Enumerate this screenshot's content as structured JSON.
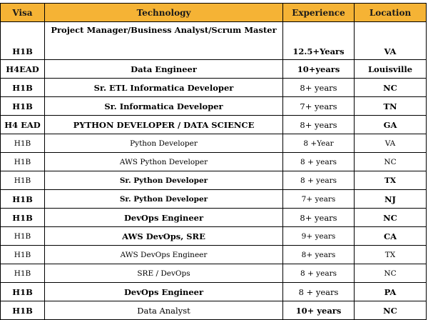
{
  "table": {
    "headers": [
      "Visa",
      "Technology",
      "Experience",
      "Location"
    ],
    "rows": [
      {
        "visa": "H1B",
        "technology": "Project Manager/Business Analyst/Scrum Master",
        "experience": "12.5+Years",
        "location": "VA"
      },
      {
        "visa": "H4EAD",
        "technology": "Data Engineer",
        "experience": "10+years",
        "location": "Louisville"
      },
      {
        "visa": "H1B",
        "technology": "Sr. ETL Informatica Developer",
        "experience": "8+ years",
        "location": "NC"
      },
      {
        "visa": "H1B",
        "technology": "Sr. Informatica Developer",
        "experience": "7+ years",
        "location": "TN"
      },
      {
        "visa": "H4 EAD",
        "technology": "PYTHON DEVELOPER / DATA SCIENCE",
        "experience": "8+ years",
        "location": "GA"
      },
      {
        "visa": "H1B",
        "technology": "Python Developer",
        "experience": "8 +Year",
        "location": "VA"
      },
      {
        "visa": "H1B",
        "technology": "AWS Python Developer",
        "experience": "8 + years",
        "location": "NC"
      },
      {
        "visa": "H1B",
        "technology": "Sr. Python Developer",
        "experience": "8 + years",
        "location": "TX"
      },
      {
        "visa": "H1B",
        "technology": "Sr. Python Developer",
        "experience": "7+ years",
        "location": "NJ"
      },
      {
        "visa": "H1B",
        "technology": "DevOps Engineer",
        "experience": "8+ years",
        "location": "NC"
      },
      {
        "visa": "H1B",
        "technology": "AWS DevOps, SRE",
        "experience": "9+ years",
        "location": "CA"
      },
      {
        "visa": "H1B",
        "technology": "AWS DevOps Engineer",
        "experience": "8+ years",
        "location": "TX"
      },
      {
        "visa": "H1B",
        "technology": "SRE / DevOps",
        "experience": "8 + years",
        "location": "NC"
      },
      {
        "visa": "H1B",
        "technology": "DevOps Engineer",
        "experience": "8 + years",
        "location": "PA"
      },
      {
        "visa": "H1B",
        "technology": "Data Analyst",
        "experience": "10+ years",
        "location": "NC"
      }
    ]
  },
  "colors": {
    "header_background": "#f5b335",
    "border": "#000000",
    "background": "#ffffff"
  }
}
